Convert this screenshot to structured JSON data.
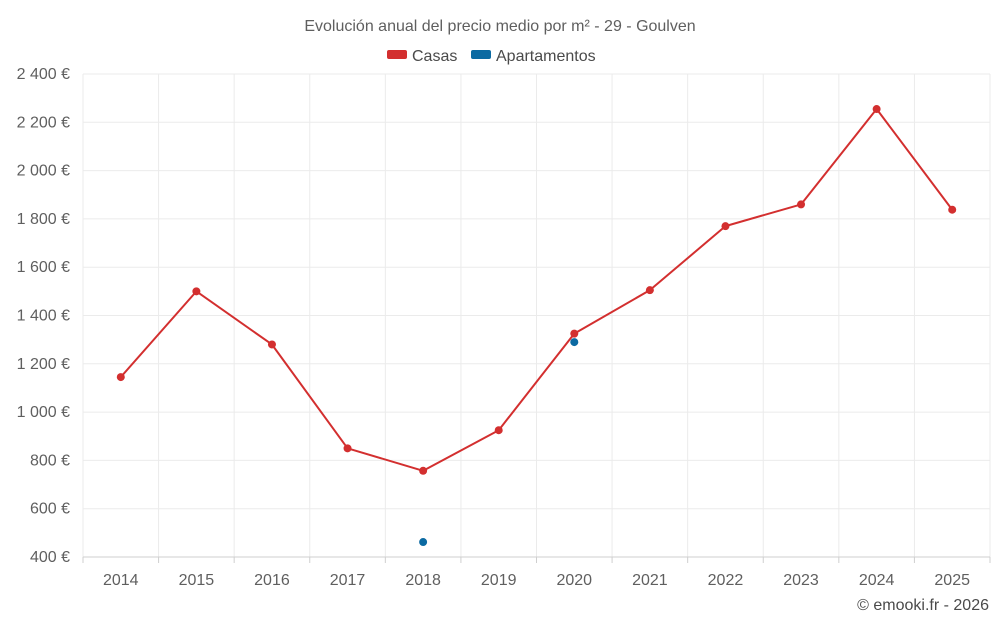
{
  "chart_data": {
    "type": "line",
    "title": "Evolución anual del precio medio por m² - 29 - Goulven",
    "x": [
      "2014",
      "2015",
      "2016",
      "2017",
      "2018",
      "2019",
      "2020",
      "2021",
      "2022",
      "2023",
      "2024",
      "2025"
    ],
    "y_ticks": [
      "400 €",
      "600 €",
      "800 €",
      "1 000 €",
      "1 200 €",
      "1 400 €",
      "1 600 €",
      "1 800 €",
      "2 000 €",
      "2 200 €",
      "2 400 €"
    ],
    "ylim": [
      400,
      2400
    ],
    "grid": true,
    "legend_position": "top-center",
    "series": [
      {
        "name": "Casas",
        "color": "#d32f2f",
        "values": [
          1145,
          1500,
          1280,
          850,
          757,
          925,
          1325,
          1505,
          1770,
          1860,
          2255,
          1838
        ]
      },
      {
        "name": "Apartamentos",
        "color": "#0b6aa2",
        "values": [
          null,
          null,
          null,
          null,
          462,
          null,
          1290,
          null,
          null,
          null,
          null,
          null
        ]
      }
    ]
  },
  "footer": "© emooki.fr - 2026"
}
